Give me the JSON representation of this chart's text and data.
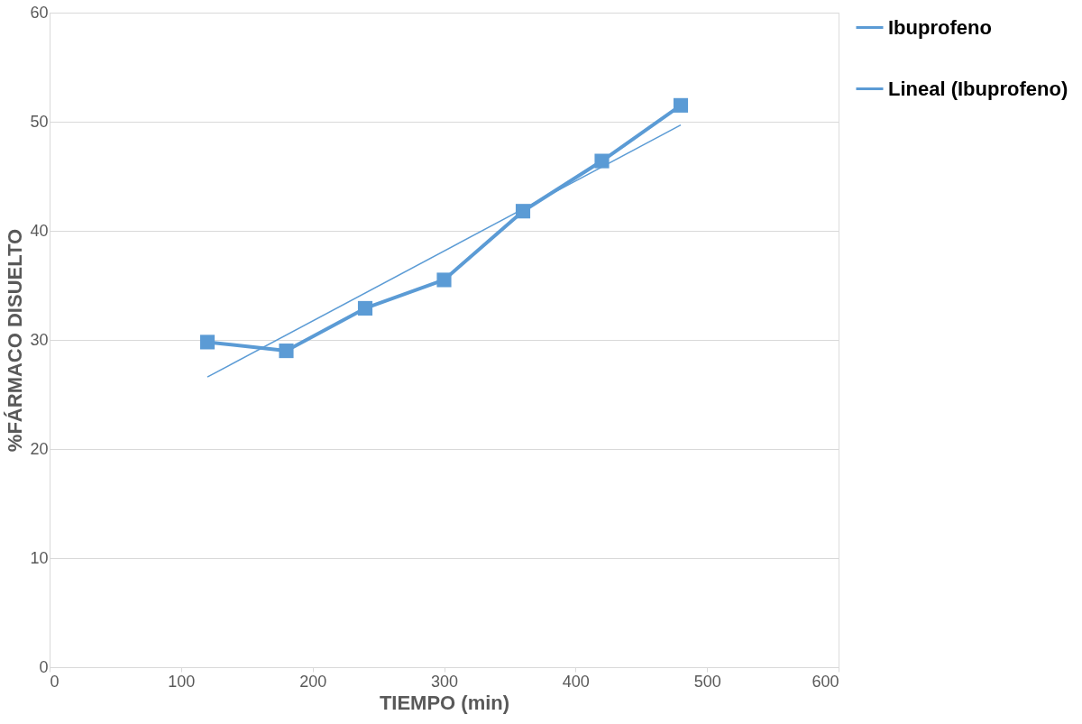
{
  "chart_data": {
    "type": "line",
    "xlabel": "TIEMPO (min)",
    "ylabel": "%FÁRMACO DISUELTO",
    "xlim": [
      0,
      600
    ],
    "xticks": [
      0,
      100,
      200,
      300,
      400,
      500,
      600
    ],
    "ylim": [
      0,
      60
    ],
    "yticks": [
      0,
      10,
      20,
      30,
      40,
      50,
      60
    ],
    "grid": "y",
    "legend": "right",
    "series": [
      {
        "name": "Ibuprofeno",
        "color": "#5b9bd5",
        "marker": "square",
        "x": [
          120,
          180,
          240,
          300,
          360,
          420,
          480
        ],
        "values": [
          29.8,
          29.0,
          32.9,
          35.5,
          41.8,
          46.4,
          51.5
        ]
      },
      {
        "name": "Lineal (Ibuprofeno)",
        "color": "#5b9bd5",
        "marker": "none",
        "x": [
          120,
          480
        ],
        "values": [
          26.6,
          49.7
        ]
      }
    ]
  }
}
